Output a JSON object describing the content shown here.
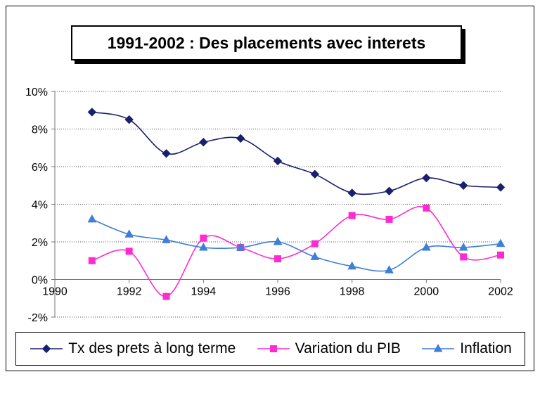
{
  "chart_data": {
    "type": "line",
    "title": "1991-2002 : Des placements avec interets",
    "xlabel": "",
    "ylabel": "",
    "xlim": [
      1990,
      2002
    ],
    "ylim": [
      -2,
      10
    ],
    "x_ticks": [
      1990,
      1992,
      1994,
      1996,
      1998,
      2000,
      2002
    ],
    "y_ticks": [
      -2,
      0,
      2,
      4,
      6,
      8,
      10
    ],
    "y_tick_labels": [
      "-2%",
      "0%",
      "2%",
      "4%",
      "6%",
      "8%",
      "10%"
    ],
    "x": [
      1991,
      1992,
      1993,
      1994,
      1995,
      1996,
      1997,
      1998,
      1999,
      2000,
      2001,
      2002
    ],
    "grid": "horizontal dotted",
    "legend_position": "bottom",
    "series": [
      {
        "name": "Tx des prets à long terme",
        "color": "#1a1f6e",
        "marker": "diamond",
        "values": [
          8.9,
          8.5,
          6.7,
          7.3,
          7.5,
          6.3,
          5.6,
          4.6,
          4.7,
          5.4,
          5.0,
          4.9
        ]
      },
      {
        "name": "Variation du PIB",
        "color": "#ff2bd0",
        "marker": "square",
        "values": [
          1.0,
          1.5,
          -0.9,
          2.2,
          1.7,
          1.1,
          1.9,
          3.4,
          3.2,
          3.8,
          1.2,
          1.3
        ]
      },
      {
        "name": "Inflation",
        "color": "#3f7fd7",
        "marker": "triangle",
        "values": [
          3.2,
          2.4,
          2.1,
          1.7,
          1.7,
          2.0,
          1.2,
          0.7,
          0.5,
          1.7,
          1.7,
          1.9
        ]
      }
    ]
  }
}
